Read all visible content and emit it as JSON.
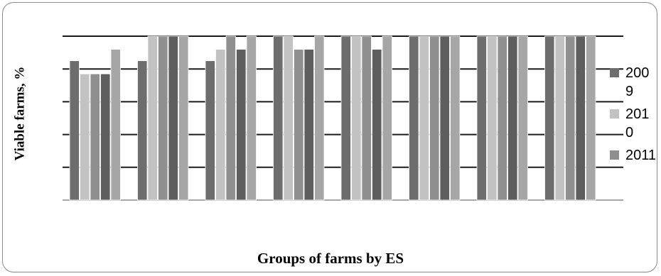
{
  "chart_data": {
    "type": "bar",
    "title": "",
    "xlabel": "Groups of farms by ES",
    "ylabel": "Viable farms, %",
    "ylim": [
      0,
      100
    ],
    "gridlines": true,
    "legend_position": "right",
    "categories": [
      "",
      "",
      "",
      "",
      "",
      "",
      "",
      ""
    ],
    "series": [
      {
        "name": "2009",
        "color": "#6d6d6d",
        "values": [
          85,
          85,
          85,
          100,
          100,
          100,
          100,
          100
        ]
      },
      {
        "name": "2010",
        "color": "#c2c2c2",
        "values": [
          77,
          100,
          92,
          100,
          100,
          100,
          100,
          100
        ]
      },
      {
        "name": "2011",
        "color": "#8f8f8f",
        "values": [
          77,
          100,
          100,
          92,
          100,
          100,
          100,
          100
        ]
      },
      {
        "name": "",
        "color": "#5e5e5e",
        "values": [
          77,
          100,
          92,
          92,
          92,
          100,
          100,
          100
        ]
      },
      {
        "name": "",
        "color": "#a6a6a6",
        "values": [
          92,
          100,
          100,
          100,
          100,
          100,
          100,
          100
        ]
      }
    ]
  },
  "legend": [
    {
      "label": "2009",
      "color": "#6d6d6d"
    },
    {
      "label": "2010",
      "color": "#c2c2c2"
    },
    {
      "label": "2011",
      "color": "#8f8f8f"
    }
  ]
}
